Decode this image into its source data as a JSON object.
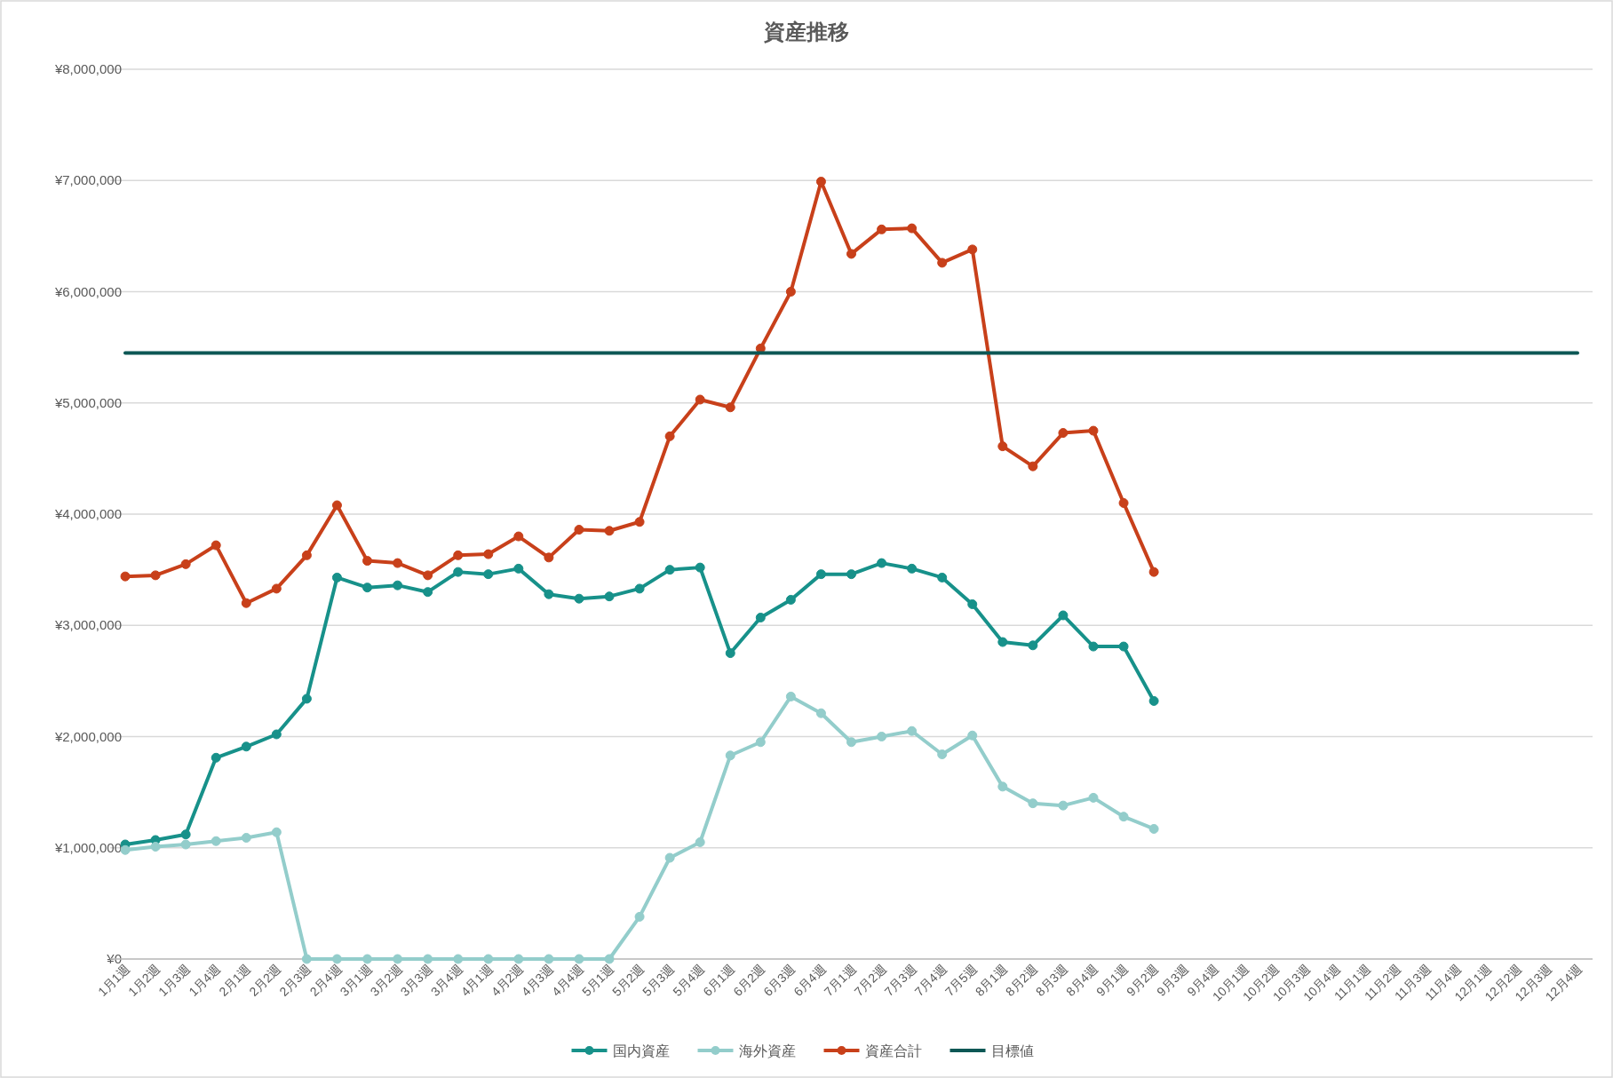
{
  "chart_data": {
    "type": "line",
    "title": "資産推移",
    "categories": [
      "1月1週",
      "1月2週",
      "1月3週",
      "1月4週",
      "2月1週",
      "2月2週",
      "2月3週",
      "2月4週",
      "3月1週",
      "3月2週",
      "3月3週",
      "3月4週",
      "4月1週",
      "4月2週",
      "4月3週",
      "4月4週",
      "5月1週",
      "5月2週",
      "5月3週",
      "5月4週",
      "6月1週",
      "6月2週",
      "6月3週",
      "6月4週",
      "7月1週",
      "7月2週",
      "7月3週",
      "7月4週",
      "7月5週",
      "8月1週",
      "8月2週",
      "8月3週",
      "8月4週",
      "9月1週",
      "9月2週",
      "9月3週",
      "9月4週",
      "10月1週",
      "10月2週",
      "10月3週",
      "10月4週",
      "11月1週",
      "11月2週",
      "11月3週",
      "11月4週",
      "12月1週",
      "12月2週",
      "12月3週",
      "12月4週"
    ],
    "series": [
      {
        "name": "国内資産",
        "color": "#17918a",
        "values": [
          1030000,
          1070000,
          1120000,
          1810000,
          1910000,
          2020000,
          2340000,
          3430000,
          3340000,
          3360000,
          3300000,
          3480000,
          3460000,
          3510000,
          3280000,
          3240000,
          3260000,
          3330000,
          3500000,
          3520000,
          2750000,
          3070000,
          3230000,
          3460000,
          3460000,
          3560000,
          3510000,
          3430000,
          3190000,
          2850000,
          2820000,
          3090000,
          2810000,
          2810000,
          2320000,
          null,
          null,
          null,
          null,
          null,
          null,
          null,
          null,
          null,
          null,
          null,
          null,
          null,
          null
        ]
      },
      {
        "name": "海外資産",
        "color": "#93cdcb",
        "values": [
          980000,
          1010000,
          1030000,
          1060000,
          1090000,
          1140000,
          0,
          0,
          0,
          0,
          0,
          0,
          0,
          0,
          0,
          0,
          0,
          380000,
          910000,
          1050000,
          1830000,
          1950000,
          2360000,
          2210000,
          1950000,
          2000000,
          2050000,
          1840000,
          2010000,
          1550000,
          1400000,
          1380000,
          1450000,
          1280000,
          1170000,
          null,
          null,
          null,
          null,
          null,
          null,
          null,
          null,
          null,
          null,
          null,
          null,
          null,
          null
        ]
      },
      {
        "name": "資産合計",
        "color": "#c8401a",
        "values": [
          3440000,
          3450000,
          3550000,
          3720000,
          3200000,
          3330000,
          3630000,
          4080000,
          3580000,
          3560000,
          3450000,
          3630000,
          3640000,
          3800000,
          3610000,
          3860000,
          3850000,
          3930000,
          4700000,
          5030000,
          4960000,
          5490000,
          6000000,
          6990000,
          6340000,
          6560000,
          6570000,
          6260000,
          6380000,
          4610000,
          4430000,
          4730000,
          4750000,
          4100000,
          3480000,
          null,
          null,
          null,
          null,
          null,
          null,
          null,
          null,
          null,
          null,
          null,
          null,
          null,
          null
        ]
      },
      {
        "name": "目標値",
        "color": "#0d5755",
        "marker": "none",
        "values": [
          5450000,
          5450000,
          5450000,
          5450000,
          5450000,
          5450000,
          5450000,
          5450000,
          5450000,
          5450000,
          5450000,
          5450000,
          5450000,
          5450000,
          5450000,
          5450000,
          5450000,
          5450000,
          5450000,
          5450000,
          5450000,
          5450000,
          5450000,
          5450000,
          5450000,
          5450000,
          5450000,
          5450000,
          5450000,
          5450000,
          5450000,
          5450000,
          5450000,
          5450000,
          5450000,
          5450000,
          5450000,
          5450000,
          5450000,
          5450000,
          5450000,
          5450000,
          5450000,
          5450000,
          5450000,
          5450000,
          5450000,
          5450000,
          5450000
        ]
      }
    ],
    "ylim": [
      0,
      8000000
    ],
    "yticks": [
      {
        "value": 0,
        "label": "¥0"
      },
      {
        "value": 1000000,
        "label": "¥1,000,000"
      },
      {
        "value": 2000000,
        "label": "¥2,000,000"
      },
      {
        "value": 3000000,
        "label": "¥3,000,000"
      },
      {
        "value": 4000000,
        "label": "¥4,000,000"
      },
      {
        "value": 5000000,
        "label": "¥5,000,000"
      },
      {
        "value": 6000000,
        "label": "¥6,000,000"
      },
      {
        "value": 7000000,
        "label": "¥7,000,000"
      },
      {
        "value": 8000000,
        "label": "¥8,000,000"
      }
    ],
    "grid": "y",
    "legend": "bottom",
    "marker": "circle",
    "line_style": "solid"
  }
}
